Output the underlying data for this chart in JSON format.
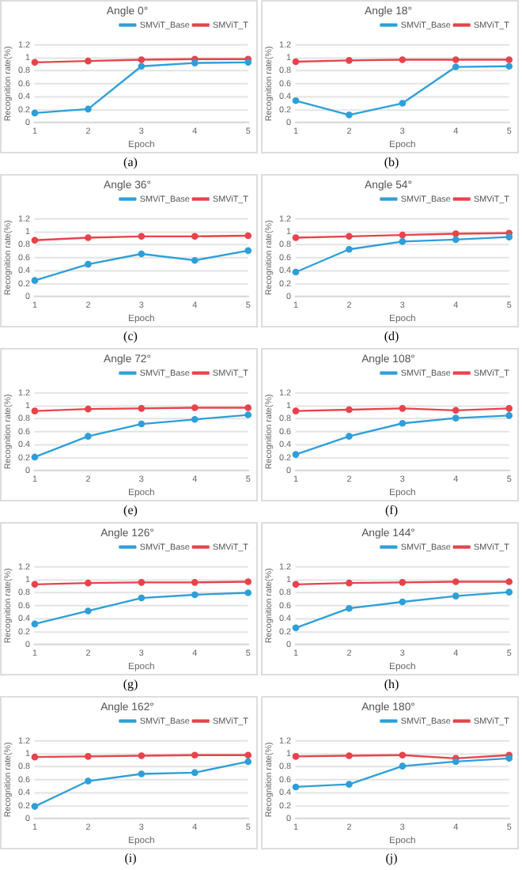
{
  "chart_data": [
    {
      "type": "line",
      "title": "Angle 0°",
      "xlabel": "Epoch",
      "ylabel": "Recognition rate(%)",
      "categories": [
        "1",
        "2",
        "3",
        "4",
        "5"
      ],
      "ylim": [
        0,
        1.2
      ],
      "yticks": [
        0,
        0.2,
        0.4,
        0.6,
        0.8,
        1,
        1.2
      ],
      "grid": "y",
      "legend": "top right",
      "marker": "circle",
      "annotations": [
        "(a)"
      ],
      "series": [
        {
          "name": "SMViT_Base",
          "color": "#2e9fd9",
          "values": [
            0.15,
            0.21,
            0.87,
            0.92,
            0.93
          ]
        },
        {
          "name": "SMViT_T",
          "color": "#e8434b",
          "values": [
            0.93,
            0.95,
            0.97,
            0.98,
            0.98
          ]
        }
      ]
    },
    {
      "type": "line",
      "title": "Angle 18°",
      "xlabel": "Epoch",
      "ylabel": "Recognition rate(%)",
      "categories": [
        "1",
        "2",
        "3",
        "4",
        "5"
      ],
      "ylim": [
        0,
        1.2
      ],
      "yticks": [
        0,
        0.2,
        0.4,
        0.6,
        0.8,
        1,
        1.2
      ],
      "grid": "y",
      "legend": "top right",
      "marker": "circle",
      "annotations": [
        "(b)"
      ],
      "series": [
        {
          "name": "SMViT_Base",
          "color": "#2e9fd9",
          "values": [
            0.34,
            0.12,
            0.3,
            0.86,
            0.87
          ]
        },
        {
          "name": "SMViT_T",
          "color": "#e8434b",
          "values": [
            0.94,
            0.96,
            0.97,
            0.97,
            0.97
          ]
        }
      ]
    },
    {
      "type": "line",
      "title": "Angle 36°",
      "xlabel": "Epoch",
      "ylabel": "Recognition rate(%)",
      "categories": [
        "1",
        "2",
        "3",
        "4",
        "5"
      ],
      "ylim": [
        0,
        1.2
      ],
      "yticks": [
        0,
        0.2,
        0.4,
        0.6,
        0.8,
        1,
        1.2
      ],
      "grid": "y",
      "legend": "top right",
      "marker": "circle",
      "annotations": [
        "(c)"
      ],
      "series": [
        {
          "name": "SMViT_Base",
          "color": "#2e9fd9",
          "values": [
            0.25,
            0.5,
            0.66,
            0.56,
            0.71
          ]
        },
        {
          "name": "SMViT_T",
          "color": "#e8434b",
          "values": [
            0.87,
            0.91,
            0.93,
            0.93,
            0.94
          ]
        }
      ]
    },
    {
      "type": "line",
      "title": "Angle 54°",
      "xlabel": "Epoch",
      "ylabel": "Recognition rate(%)",
      "categories": [
        "1",
        "2",
        "3",
        "4",
        "5"
      ],
      "ylim": [
        0,
        1.2
      ],
      "yticks": [
        0,
        0.2,
        0.4,
        0.6,
        0.8,
        1,
        1.2
      ],
      "grid": "y",
      "legend": "top right",
      "marker": "circle",
      "annotations": [
        "(d)"
      ],
      "series": [
        {
          "name": "SMViT_Base",
          "color": "#2e9fd9",
          "values": [
            0.38,
            0.73,
            0.85,
            0.88,
            0.92
          ]
        },
        {
          "name": "SMViT_T",
          "color": "#e8434b",
          "values": [
            0.91,
            0.93,
            0.95,
            0.97,
            0.98
          ]
        }
      ]
    },
    {
      "type": "line",
      "title": "Angle 72°",
      "xlabel": "Epoch",
      "ylabel": "Recognition rate(%)",
      "categories": [
        "1",
        "2",
        "3",
        "4",
        "5"
      ],
      "ylim": [
        0,
        1.2
      ],
      "yticks": [
        0,
        0.2,
        0.4,
        0.6,
        0.8,
        1,
        1.2
      ],
      "grid": "y",
      "legend": "top right",
      "marker": "circle",
      "annotations": [
        "(e)"
      ],
      "series": [
        {
          "name": "SMViT_Base",
          "color": "#2e9fd9",
          "values": [
            0.21,
            0.53,
            0.72,
            0.79,
            0.86
          ]
        },
        {
          "name": "SMViT_T",
          "color": "#e8434b",
          "values": [
            0.92,
            0.95,
            0.96,
            0.97,
            0.97
          ]
        }
      ]
    },
    {
      "type": "line",
      "title": "Angle 108°",
      "xlabel": "Epoch",
      "ylabel": "Recognition rate(%)",
      "categories": [
        "1",
        "2",
        "3",
        "4",
        "5"
      ],
      "ylim": [
        0,
        1.2
      ],
      "yticks": [
        0,
        0.2,
        0.4,
        0.6,
        0.8,
        1,
        1.2
      ],
      "grid": "y",
      "legend": "top right",
      "marker": "circle",
      "annotations": [
        "(f)"
      ],
      "series": [
        {
          "name": "SMViT_Base",
          "color": "#2e9fd9",
          "values": [
            0.25,
            0.53,
            0.73,
            0.81,
            0.85
          ]
        },
        {
          "name": "SMViT_T",
          "color": "#e8434b",
          "values": [
            0.92,
            0.94,
            0.96,
            0.93,
            0.96
          ]
        }
      ]
    },
    {
      "type": "line",
      "title": "Angle 126°",
      "xlabel": "Epoch",
      "ylabel": "Recognition rate(%)",
      "categories": [
        "1",
        "2",
        "3",
        "4",
        "5"
      ],
      "ylim": [
        0,
        1.2
      ],
      "yticks": [
        0,
        0.2,
        0.4,
        0.6,
        0.8,
        1,
        1.2
      ],
      "grid": "y",
      "legend": "top right",
      "marker": "circle",
      "annotations": [
        "(g)"
      ],
      "series": [
        {
          "name": "SMViT_Base",
          "color": "#2e9fd9",
          "values": [
            0.32,
            0.52,
            0.72,
            0.77,
            0.8
          ]
        },
        {
          "name": "SMViT_T",
          "color": "#e8434b",
          "values": [
            0.93,
            0.95,
            0.96,
            0.96,
            0.97
          ]
        }
      ]
    },
    {
      "type": "line",
      "title": "Angle 144°",
      "xlabel": "Epoch",
      "ylabel": "Recognition rate(%)",
      "categories": [
        "1",
        "2",
        "3",
        "4",
        "5"
      ],
      "ylim": [
        0,
        1.2
      ],
      "yticks": [
        0,
        0.2,
        0.4,
        0.6,
        0.8,
        1,
        1.2
      ],
      "grid": "y",
      "legend": "top right",
      "marker": "circle",
      "annotations": [
        "(h)"
      ],
      "series": [
        {
          "name": "SMViT_Base",
          "color": "#2e9fd9",
          "values": [
            0.26,
            0.56,
            0.66,
            0.75,
            0.81
          ]
        },
        {
          "name": "SMViT_T",
          "color": "#e8434b",
          "values": [
            0.93,
            0.95,
            0.96,
            0.97,
            0.97
          ]
        }
      ]
    },
    {
      "type": "line",
      "title": "Angle 162°",
      "xlabel": "Epoch",
      "ylabel": "Recognition rate(%)",
      "categories": [
        "1",
        "2",
        "3",
        "4",
        "5"
      ],
      "ylim": [
        0,
        1.2
      ],
      "yticks": [
        0,
        0.2,
        0.4,
        0.6,
        0.8,
        1,
        1.2
      ],
      "grid": "y",
      "legend": "top right",
      "marker": "circle",
      "annotations": [
        "(i)"
      ],
      "series": [
        {
          "name": "SMViT_Base",
          "color": "#2e9fd9",
          "values": [
            0.19,
            0.58,
            0.69,
            0.71,
            0.88
          ]
        },
        {
          "name": "SMViT_T",
          "color": "#e8434b",
          "values": [
            0.95,
            0.96,
            0.97,
            0.98,
            0.98
          ]
        }
      ]
    },
    {
      "type": "line",
      "title": "Angle 180°",
      "xlabel": "Epoch",
      "ylabel": "Recognition rate(%)",
      "categories": [
        "1",
        "2",
        "3",
        "4",
        "5"
      ],
      "ylim": [
        0,
        1.2
      ],
      "yticks": [
        0,
        0.2,
        0.4,
        0.6,
        0.8,
        1,
        1.2
      ],
      "grid": "y",
      "legend": "top right",
      "marker": "circle",
      "annotations": [
        "(j)"
      ],
      "series": [
        {
          "name": "SMViT_Base",
          "color": "#2e9fd9",
          "values": [
            0.49,
            0.53,
            0.81,
            0.88,
            0.93
          ]
        },
        {
          "name": "SMViT_T",
          "color": "#e8434b",
          "values": [
            0.96,
            0.97,
            0.98,
            0.93,
            0.98
          ]
        }
      ]
    }
  ]
}
